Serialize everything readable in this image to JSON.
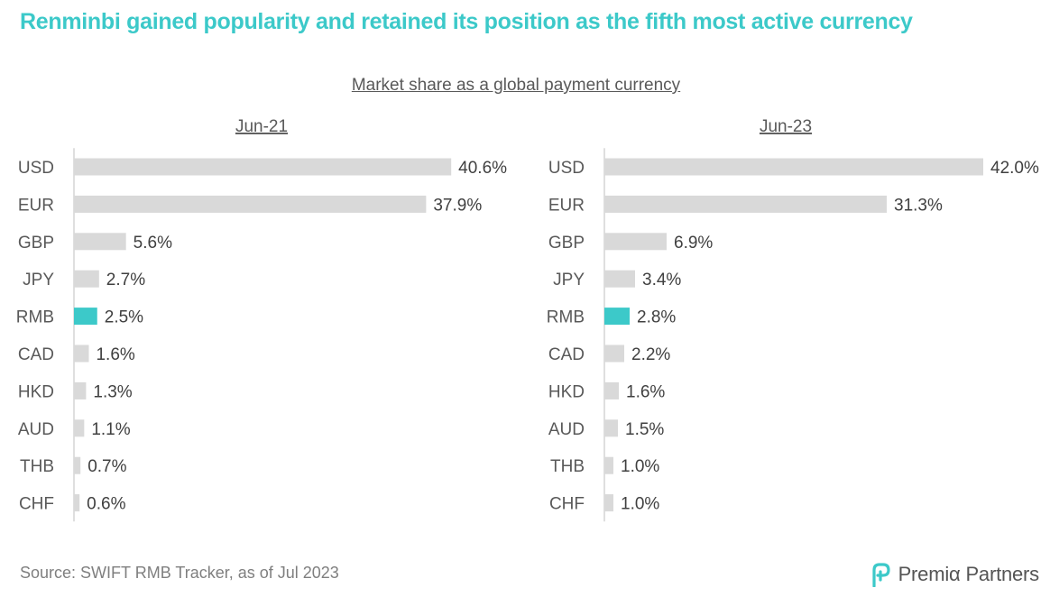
{
  "headline": "Renminbi gained popularity and retained its position as the fifth most active currency",
  "subtitle": "Market share as a global payment currency",
  "source": "Source: SWIFT RMB Tracker, as of Jul 2023",
  "logo_text": "Premiα Partners",
  "colors": {
    "bar": "#d9d9d9",
    "highlight": "#3cc9c9",
    "axis": "#bfbfbf"
  },
  "chart_data": [
    {
      "type": "bar",
      "orientation": "horizontal",
      "title": "Jun-21",
      "categories": [
        "USD",
        "EUR",
        "GBP",
        "JPY",
        "RMB",
        "CAD",
        "HKD",
        "AUD",
        "THB",
        "CHF"
      ],
      "values": [
        40.6,
        37.9,
        5.6,
        2.7,
        2.5,
        1.6,
        1.3,
        1.1,
        0.7,
        0.6
      ],
      "labels": [
        "40.6%",
        "37.9%",
        "5.6%",
        "2.7%",
        "2.5%",
        "1.6%",
        "1.3%",
        "1.1%",
        "0.7%",
        "0.6%"
      ],
      "highlight": "RMB",
      "unit": "%"
    },
    {
      "type": "bar",
      "orientation": "horizontal",
      "title": "Jun-23",
      "categories": [
        "USD",
        "EUR",
        "GBP",
        "JPY",
        "RMB",
        "CAD",
        "HKD",
        "AUD",
        "THB",
        "CHF"
      ],
      "values": [
        42.0,
        31.3,
        6.9,
        3.4,
        2.8,
        2.2,
        1.6,
        1.5,
        1.0,
        1.0
      ],
      "labels": [
        "42.0%",
        "31.3%",
        "6.9%",
        "3.4%",
        "2.8%",
        "2.2%",
        "1.6%",
        "1.5%",
        "1.0%",
        "1.0%"
      ],
      "highlight": "RMB",
      "unit": "%"
    }
  ]
}
